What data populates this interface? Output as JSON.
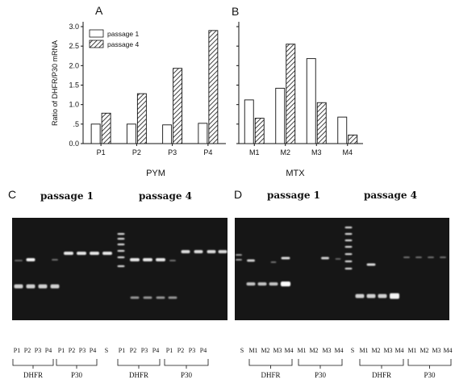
{
  "chart_data": [
    {
      "type": "bar",
      "panel": "A",
      "xlabel": "PYM",
      "ylabel": "Ratio of DHFR/P30 mRNA",
      "ylim": [
        0,
        3.0
      ],
      "yticks": [
        "0.0",
        ".5",
        "1.0",
        "1.5",
        "2.0",
        "2.5",
        "3.0"
      ],
      "categories": [
        "P1",
        "P2",
        "P3",
        "P4"
      ],
      "series": [
        {
          "name": "passage 1",
          "values": [
            0.5,
            0.5,
            0.48,
            0.52
          ]
        },
        {
          "name": "passage 4",
          "values": [
            0.78,
            1.28,
            1.93,
            2.9
          ]
        }
      ],
      "legend": "top-left"
    },
    {
      "type": "bar",
      "panel": "B",
      "xlabel": "MTX",
      "categories": [
        "M1",
        "M2",
        "M3",
        "M4"
      ],
      "series": [
        {
          "name": "passage 1",
          "values": [
            1.12,
            1.42,
            2.18,
            0.68
          ]
        },
        {
          "name": "passage 4",
          "values": [
            0.65,
            2.55,
            1.05,
            0.22
          ]
        }
      ]
    }
  ],
  "gels": {
    "C": {
      "letter": "C",
      "titles": [
        "passage 1",
        "passage 4"
      ],
      "lanes": [
        "P1",
        "P2",
        "P3",
        "P4",
        "P1",
        "P2",
        "P3",
        "P4",
        "S",
        "P1",
        "P2",
        "P3",
        "P4",
        "P1",
        "P2",
        "P3",
        "P4"
      ],
      "groups": [
        "DHFR",
        "P30",
        "DHFR",
        "P30"
      ]
    },
    "D": {
      "letter": "D",
      "titles": [
        "passage 1",
        "passage 4"
      ],
      "lanes": [
        "S",
        "M1",
        "M2",
        "M3",
        "M4",
        "M1",
        "M2",
        "M3",
        "M4",
        "S",
        "M1",
        "M2",
        "M3",
        "M4",
        "M1",
        "M2",
        "M3",
        "M4"
      ],
      "groups": [
        "DHFR",
        "P30",
        "DHFR",
        "P30"
      ]
    }
  }
}
